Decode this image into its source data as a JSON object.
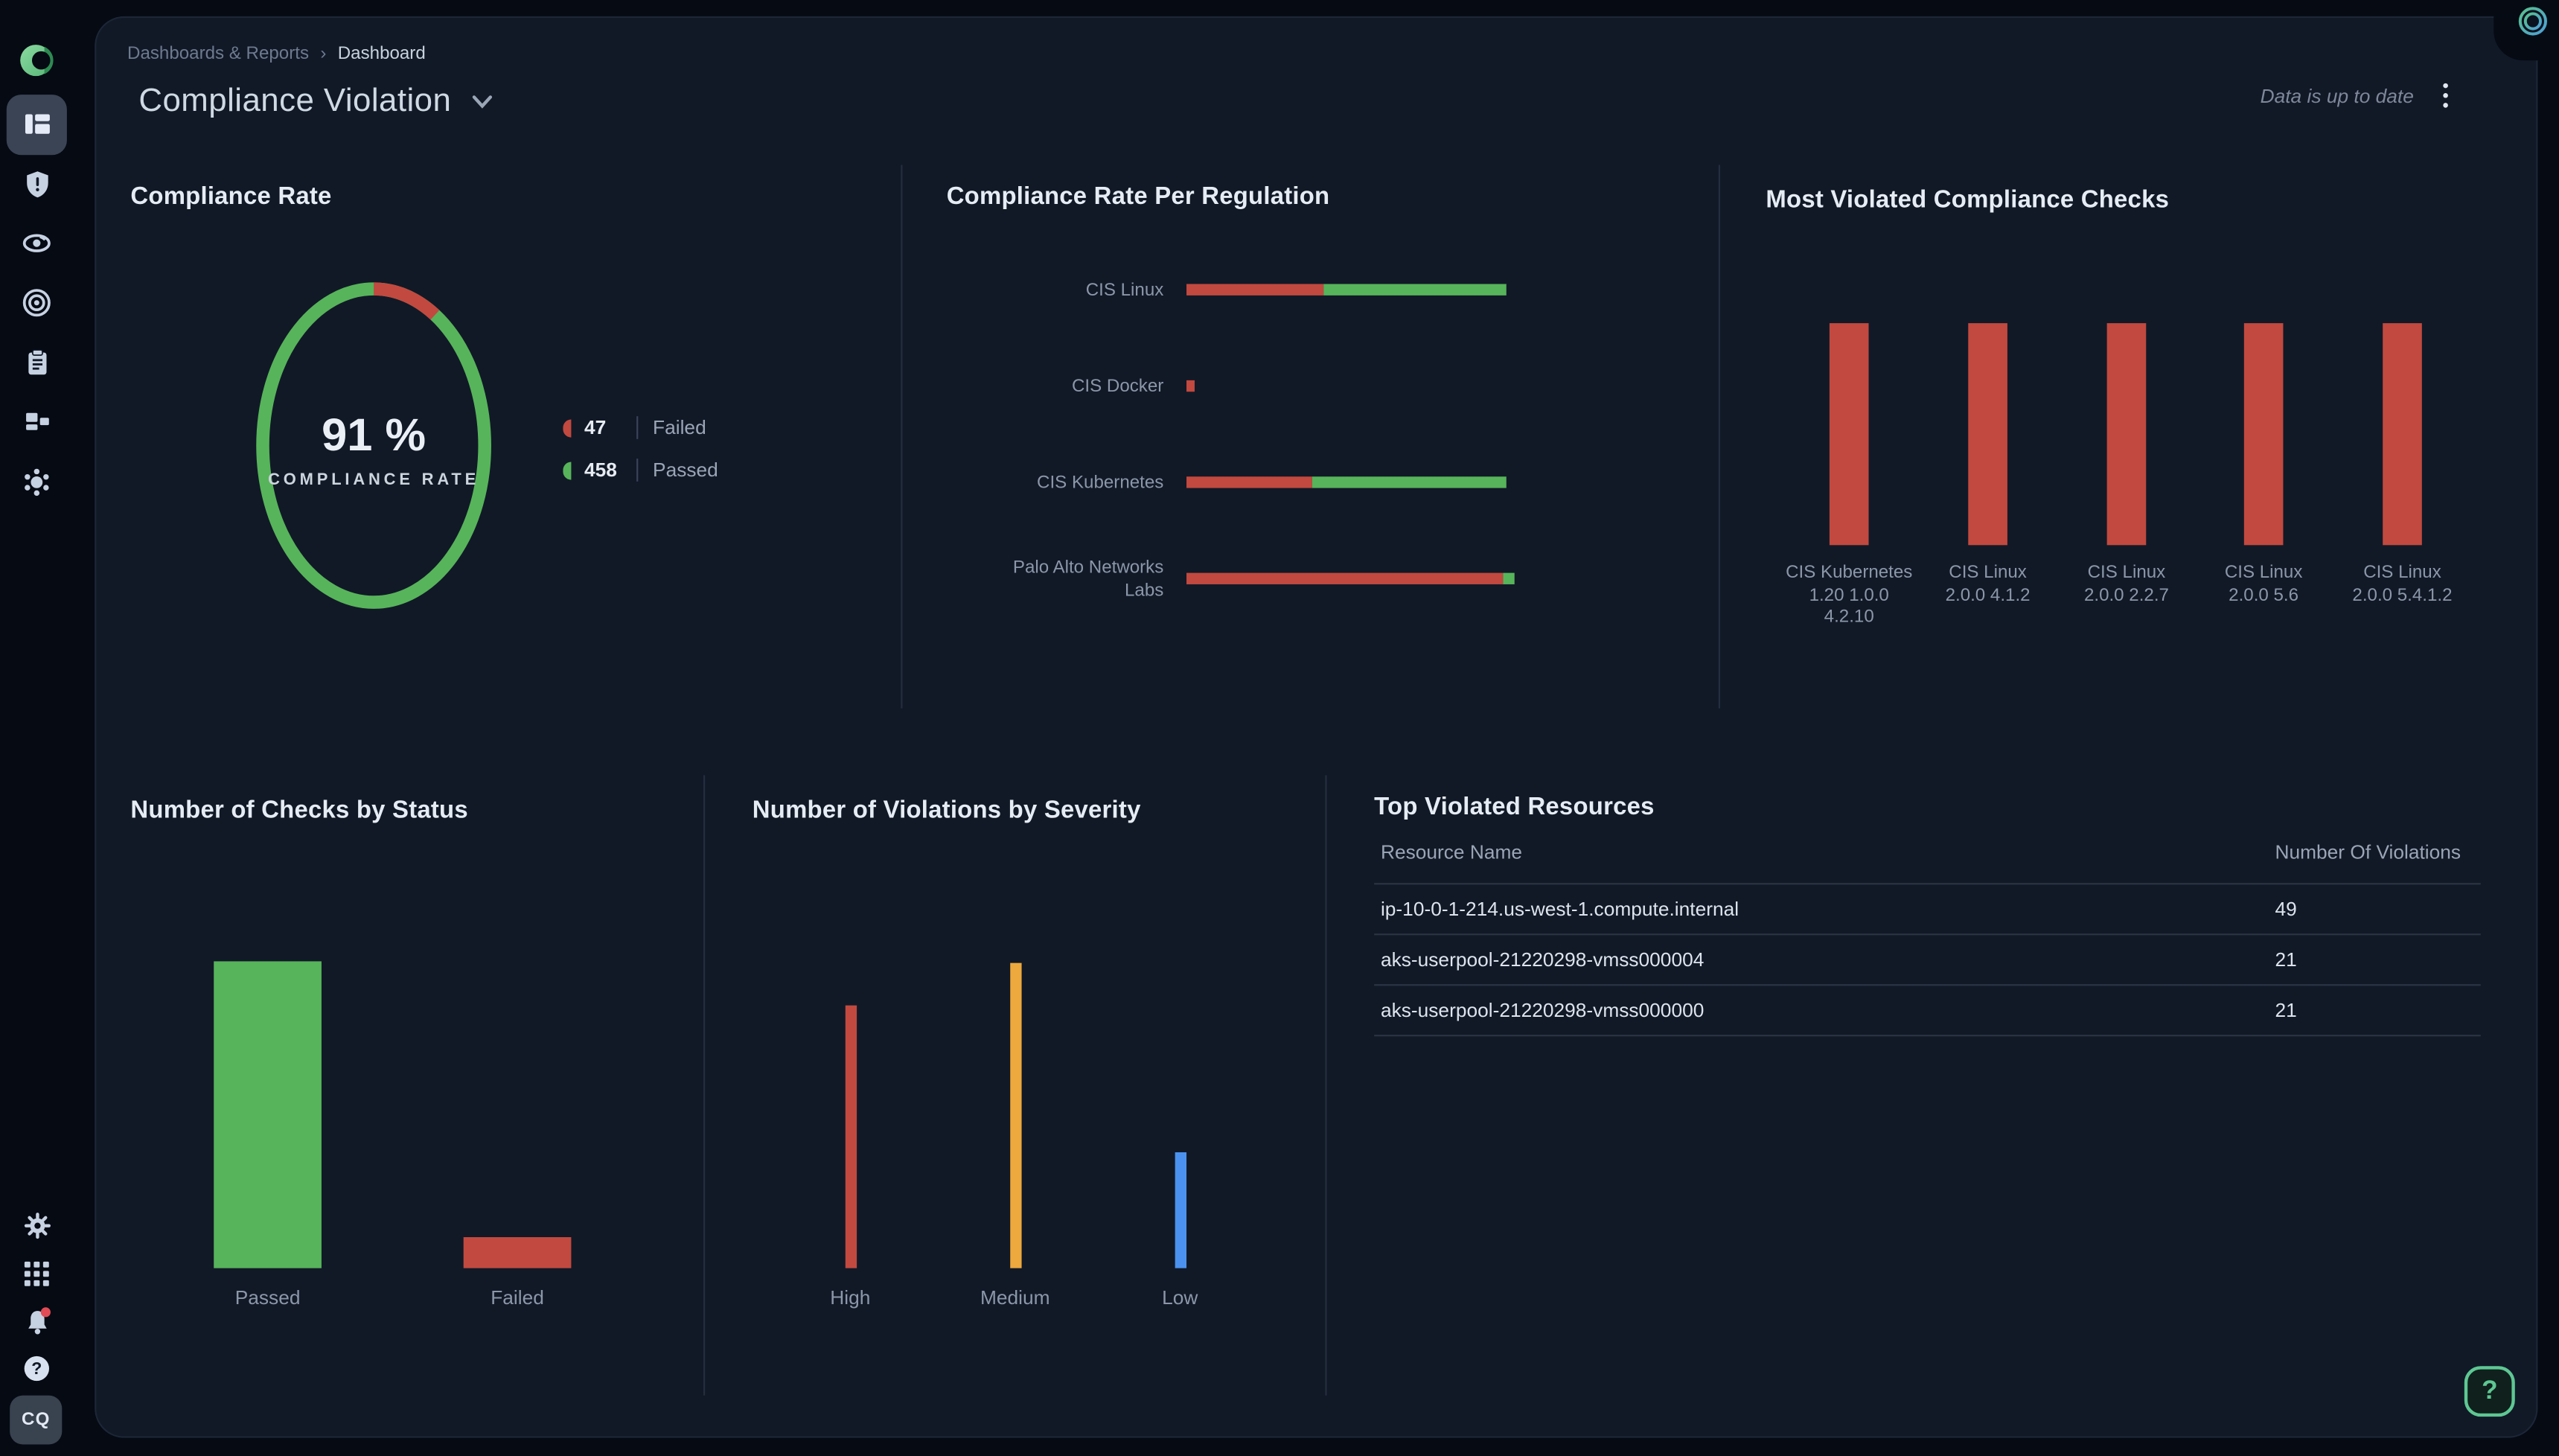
{
  "colors": {
    "page_bg": "#050a13",
    "panel_bg": "#111927",
    "green": "#57b45a",
    "red": "#c2493f",
    "orange": "#eda93e",
    "blue": "#4b92f0",
    "notification_dot": "#e14b55",
    "help_accent": "#5ec793"
  },
  "breadcrumb": {
    "items": [
      "Dashboards & Reports",
      "Dashboard"
    ],
    "separator": "›"
  },
  "header": {
    "title": "Compliance Violation",
    "status_text": "Data is up to date"
  },
  "sidebar": {
    "icons": [
      "orca-logo",
      "dashboards",
      "alerts",
      "visibility",
      "attack-surface",
      "compliance",
      "inventory",
      "malware"
    ],
    "footer_icons": [
      "settings",
      "apps",
      "notifications",
      "help"
    ],
    "active_item": "dashboards",
    "notification_dot": true,
    "avatar_initials": "CQ"
  },
  "sections": {
    "compliance_rate": {
      "title": "Compliance Rate",
      "center_value": "91 %",
      "center_label": "COMPLIANCE RATE",
      "legend": [
        {
          "value": "47",
          "label": "Failed"
        },
        {
          "value": "458",
          "label": "Passed"
        }
      ]
    },
    "per_regulation": {
      "title": "Compliance Rate Per Regulation",
      "rows": [
        {
          "label": "CIS Linux"
        },
        {
          "label": "CIS Docker"
        },
        {
          "label": "CIS Kubernetes"
        },
        {
          "label": "Palo Alto Networks\nLabs"
        }
      ]
    },
    "most_violated": {
      "title": "Most Violated Compliance Checks",
      "labels": [
        "CIS Kubernetes\n1.20 1.0.0\n4.2.10",
        "CIS Linux\n2.0.0 4.1.2",
        "CIS Linux\n2.0.0 2.2.7",
        "CIS Linux\n2.0.0 5.6",
        "CIS Linux\n2.0.0 5.4.1.2"
      ]
    },
    "checks_by_status": {
      "title": "Number of Checks by Status",
      "categories": [
        "Passed",
        "Failed"
      ]
    },
    "violations_by_severity": {
      "title": "Number of Violations by Severity",
      "categories": [
        "High",
        "Medium",
        "Low"
      ]
    },
    "table": {
      "title": "Top Violated Resources",
      "columns": [
        "Resource Name",
        "Number Of Violations"
      ],
      "rows": [
        [
          "ip-10-0-1-214.us-west-1.compute.internal",
          "49"
        ],
        [
          "aks-userpool-21220298-vmss000004",
          "21"
        ],
        [
          "aks-userpool-21220298-vmss000000",
          "21"
        ]
      ]
    }
  },
  "help_button": {
    "label": "?"
  },
  "chart_data": [
    {
      "id": "compliance_rate_donut",
      "type": "donut",
      "title": "Compliance Rate",
      "categories": [
        "Failed",
        "Passed"
      ],
      "values": [
        47,
        458
      ],
      "center_value": "91 %",
      "center_label": "COMPLIANCE RATE",
      "colors": [
        "#c2493f",
        "#57b45a"
      ],
      "legend_position": "right"
    },
    {
      "id": "compliance_rate_per_regulation",
      "type": "bar",
      "orientation": "horizontal",
      "stacked": true,
      "unit": "percent_of_bar",
      "title": "Compliance Rate Per Regulation",
      "categories": [
        "CIS Linux",
        "CIS Docker",
        "CIS Kubernetes",
        "Palo Alto Networks Labs"
      ],
      "series": [
        {
          "name": "Failed",
          "color": "#c2493f",
          "values": [
            43,
            2.5,
            39.5,
            96.5
          ]
        },
        {
          "name": "Passed",
          "color": "#57b45a",
          "values": [
            57,
            0,
            60.5,
            3.5
          ]
        }
      ],
      "values_estimated": true,
      "note": "no numeric axis shown; segment widths estimated from pixels"
    },
    {
      "id": "most_violated_compliance_checks",
      "type": "bar",
      "title": "Most Violated Compliance Checks",
      "categories": [
        "CIS Kubernetes 1.20 1.0.0 4.2.10",
        "CIS Linux 2.0.0 4.1.2",
        "CIS Linux 2.0.0 2.2.7",
        "CIS Linux 2.0.0 5.6",
        "CIS Linux 2.0.0 5.4.1.2"
      ],
      "values": [
        1,
        1,
        1,
        1,
        1
      ],
      "max": 1,
      "color": "#c2493f",
      "values_estimated": true,
      "note": "all five bars equal height; no numeric axis shown"
    },
    {
      "id": "number_of_checks_by_status",
      "type": "bar",
      "title": "Number of Checks by Status",
      "categories": [
        "Passed",
        "Failed"
      ],
      "values": [
        458,
        47
      ],
      "max": 458,
      "colors": [
        "#57b45a",
        "#c2493f"
      ]
    },
    {
      "id": "number_of_violations_by_severity",
      "type": "bar",
      "title": "Number of Violations by Severity",
      "categories": [
        "High",
        "Medium",
        "Low"
      ],
      "values": [
        86,
        100,
        38
      ],
      "max": 100,
      "colors": [
        "#c2493f",
        "#eda93e",
        "#4b92f0"
      ],
      "values_estimated": true,
      "note": "no numeric axis shown; values are relative bar heights"
    }
  ]
}
